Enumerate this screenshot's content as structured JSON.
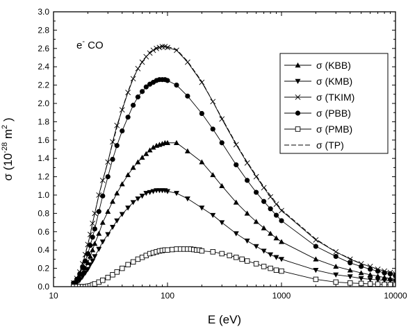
{
  "chart_data": {
    "type": "line",
    "xscale": "log",
    "xlim": [
      10,
      10000
    ],
    "ylim": [
      0,
      3.0
    ],
    "xlabel": "E (eV)",
    "ylabel": "σ (10-28 m2 )",
    "ylabel_parts": {
      "main": "σ (10",
      "exp1": "-28",
      "mid": " m",
      "exp2": "2",
      "tail": " )"
    },
    "x_ticks": [
      10,
      100,
      1000,
      10000
    ],
    "x_tick_labels": [
      "10",
      "100",
      "1000",
      "10000"
    ],
    "y_ticks": [
      0,
      0.2,
      0.4,
      0.6,
      0.8,
      1.0,
      1.2,
      1.4,
      1.6,
      1.8,
      2.0,
      2.2,
      2.4,
      2.6,
      2.8,
      3.0
    ],
    "y_tick_labels": [
      "0.0",
      "0.2",
      "0.4",
      "0.6",
      "0.8",
      "1.0",
      "1.2",
      "1.4",
      "1.6",
      "1.8",
      "2.0",
      "2.2",
      "2.4",
      "2.6",
      "2.8",
      "3.0"
    ],
    "annotation": {
      "main": "e",
      "sup": "-",
      "tail": " CO"
    },
    "legend_position": "top-right",
    "series": [
      {
        "name": "σ (KBB)",
        "marker": "triangle-up",
        "dash": "",
        "x": [
          15,
          16,
          17,
          18,
          19,
          20,
          21,
          22,
          23,
          25,
          27,
          30,
          33,
          36,
          40,
          45,
          50,
          55,
          60,
          65,
          70,
          75,
          80,
          85,
          90,
          95,
          100,
          120,
          150,
          200,
          250,
          300,
          400,
          500,
          600,
          700,
          800,
          900,
          1000,
          2000,
          3000,
          4000,
          5000,
          6000,
          7000,
          8000,
          9000,
          10000
        ],
        "y": [
          0.03,
          0.06,
          0.1,
          0.15,
          0.2,
          0.26,
          0.33,
          0.4,
          0.47,
          0.58,
          0.7,
          0.82,
          0.93,
          1.02,
          1.12,
          1.22,
          1.3,
          1.36,
          1.41,
          1.45,
          1.49,
          1.52,
          1.54,
          1.55,
          1.56,
          1.57,
          1.57,
          1.57,
          1.48,
          1.36,
          1.22,
          1.1,
          0.92,
          0.8,
          0.71,
          0.64,
          0.58,
          0.53,
          0.49,
          0.3,
          0.22,
          0.18,
          0.15,
          0.13,
          0.115,
          0.1,
          0.09,
          0.08
        ]
      },
      {
        "name": "σ (KMB)",
        "marker": "triangle-down",
        "dash": "",
        "x": [
          15,
          16,
          17,
          18,
          19,
          20,
          21,
          22,
          23,
          25,
          27,
          30,
          33,
          36,
          40,
          45,
          50,
          55,
          60,
          65,
          70,
          75,
          80,
          85,
          90,
          95,
          100,
          120,
          150,
          200,
          250,
          300,
          400,
          500,
          600,
          700,
          800,
          900,
          1000,
          2000,
          3000,
          4000,
          5000,
          6000,
          7000,
          8000,
          9000,
          10000
        ],
        "y": [
          0.02,
          0.04,
          0.07,
          0.11,
          0.15,
          0.19,
          0.24,
          0.28,
          0.33,
          0.41,
          0.49,
          0.57,
          0.65,
          0.72,
          0.79,
          0.86,
          0.92,
          0.96,
          0.99,
          1.02,
          1.03,
          1.04,
          1.05,
          1.05,
          1.05,
          1.05,
          1.04,
          1.02,
          0.96,
          0.86,
          0.78,
          0.7,
          0.58,
          0.5,
          0.44,
          0.39,
          0.35,
          0.32,
          0.3,
          0.18,
          0.13,
          0.11,
          0.09,
          0.08,
          0.075,
          0.07,
          0.065,
          0.06
        ]
      },
      {
        "name": "σ (TKIM)",
        "marker": "x",
        "dash": "",
        "x": [
          15,
          16,
          17,
          18,
          19,
          20,
          21,
          22,
          23,
          25,
          27,
          30,
          33,
          36,
          40,
          45,
          50,
          55,
          60,
          65,
          70,
          75,
          80,
          85,
          90,
          95,
          100,
          120,
          150,
          200,
          250,
          300,
          400,
          500,
          600,
          700,
          800,
          900,
          1000,
          2000,
          3000,
          4000,
          5000,
          6000,
          7000,
          8000,
          9000,
          10000
        ],
        "y": [
          0.04,
          0.09,
          0.16,
          0.25,
          0.35,
          0.46,
          0.57,
          0.69,
          0.8,
          1.0,
          1.16,
          1.36,
          1.58,
          1.76,
          1.93,
          2.12,
          2.27,
          2.38,
          2.45,
          2.51,
          2.55,
          2.58,
          2.6,
          2.61,
          2.62,
          2.62,
          2.61,
          2.58,
          2.45,
          2.23,
          2.02,
          1.83,
          1.55,
          1.35,
          1.2,
          1.08,
          0.98,
          0.9,
          0.83,
          0.51,
          0.38,
          0.3,
          0.25,
          0.22,
          0.19,
          0.17,
          0.155,
          0.14
        ]
      },
      {
        "name": "σ (PBB)",
        "marker": "circle",
        "dash": "",
        "x": [
          15,
          16,
          17,
          18,
          19,
          20,
          21,
          22,
          23,
          25,
          27,
          30,
          33,
          36,
          40,
          45,
          50,
          55,
          60,
          65,
          70,
          75,
          80,
          85,
          90,
          95,
          100,
          120,
          150,
          200,
          250,
          300,
          400,
          500,
          600,
          700,
          800,
          900,
          1000,
          2000,
          3000,
          4000,
          5000,
          6000,
          7000,
          8000,
          9000,
          10000
        ],
        "y": [
          0.04,
          0.08,
          0.14,
          0.21,
          0.28,
          0.36,
          0.45,
          0.54,
          0.63,
          0.82,
          0.99,
          1.2,
          1.39,
          1.54,
          1.7,
          1.85,
          1.98,
          2.07,
          2.13,
          2.18,
          2.21,
          2.23,
          2.25,
          2.26,
          2.26,
          2.26,
          2.25,
          2.2,
          2.08,
          1.89,
          1.72,
          1.57,
          1.33,
          1.16,
          1.03,
          0.93,
          0.85,
          0.78,
          0.72,
          0.44,
          0.33,
          0.26,
          0.22,
          0.19,
          0.17,
          0.15,
          0.14,
          0.12
        ]
      },
      {
        "name": "σ (PMB)",
        "marker": "square",
        "dash": "",
        "x": [
          15,
          16,
          17,
          18,
          19,
          20,
          21,
          22,
          23,
          25,
          27,
          30,
          33,
          36,
          40,
          45,
          50,
          55,
          60,
          65,
          70,
          75,
          80,
          85,
          90,
          95,
          100,
          110,
          120,
          130,
          140,
          150,
          160,
          170,
          180,
          190,
          200,
          250,
          300,
          350,
          400,
          450,
          500,
          600,
          700,
          800,
          900,
          1000,
          2000,
          3000,
          4000,
          5000,
          6000,
          7000,
          8000,
          9000,
          10000
        ],
        "y": [
          0.0,
          0.0,
          0.0,
          0.0,
          0.0,
          0.005,
          0.01,
          0.02,
          0.03,
          0.05,
          0.07,
          0.1,
          0.13,
          0.16,
          0.2,
          0.24,
          0.27,
          0.3,
          0.32,
          0.34,
          0.36,
          0.37,
          0.38,
          0.39,
          0.395,
          0.4,
          0.4,
          0.405,
          0.41,
          0.41,
          0.41,
          0.41,
          0.41,
          0.405,
          0.4,
          0.4,
          0.39,
          0.38,
          0.36,
          0.34,
          0.32,
          0.3,
          0.28,
          0.25,
          0.22,
          0.2,
          0.18,
          0.17,
          0.08,
          0.05,
          0.04,
          0.035,
          0.03,
          0.028,
          0.025,
          0.023,
          0.02
        ]
      },
      {
        "name": "σ (TP)",
        "marker": "none",
        "dash": "7,3",
        "x": [
          15,
          17,
          20,
          23,
          25,
          30,
          35,
          40,
          45,
          50,
          60,
          70,
          80,
          90,
          100,
          120,
          150,
          200,
          300,
          400,
          500,
          700,
          1000,
          2000,
          3000,
          5000,
          7000,
          10000
        ],
        "y": [
          0.04,
          0.16,
          0.46,
          0.8,
          1.0,
          1.37,
          1.68,
          1.94,
          2.13,
          2.28,
          2.46,
          2.56,
          2.61,
          2.63,
          2.62,
          2.59,
          2.46,
          2.24,
          1.84,
          1.56,
          1.36,
          1.09,
          0.84,
          0.52,
          0.38,
          0.25,
          0.19,
          0.14
        ]
      }
    ]
  }
}
